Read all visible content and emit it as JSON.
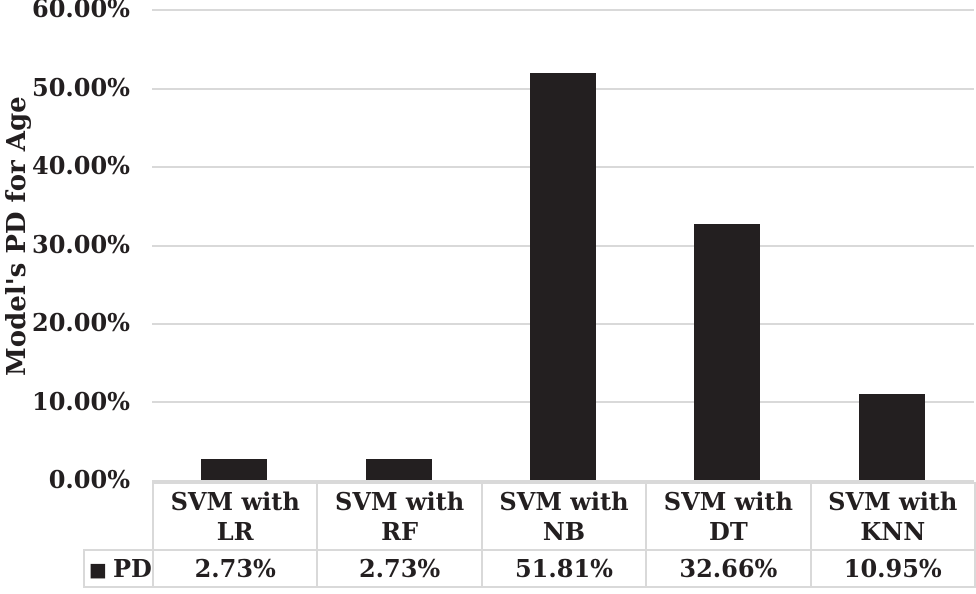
{
  "chart_data": {
    "type": "bar",
    "title": "",
    "xlabel": "",
    "ylabel": "Model's PD for Age",
    "categories": [
      "SVM with LR",
      "SVM with RF",
      "SVM with NB",
      "SVM with DT",
      "SVM with KNN"
    ],
    "series": [
      {
        "name": "PD",
        "values": [
          2.73,
          2.73,
          51.81,
          32.66,
          10.95
        ]
      }
    ],
    "value_labels": [
      "2.73%",
      "2.73%",
      "51.81%",
      "32.66%",
      "10.95%"
    ],
    "ylim": [
      0,
      60
    ],
    "ytick_step": 10,
    "ytick_labels": [
      "60.00%",
      "50.00%",
      "40.00%",
      "30.00%",
      "20.00%",
      "10.00%",
      "0.00%"
    ],
    "grid": true,
    "legend_position": "data-table-left",
    "legend_marker": "■",
    "colors": {
      "bar": "#231f20",
      "gridline": "#d9d9d9",
      "table_border": "#d9d9d9",
      "text": "#231f20",
      "background": "#ffffff"
    }
  }
}
